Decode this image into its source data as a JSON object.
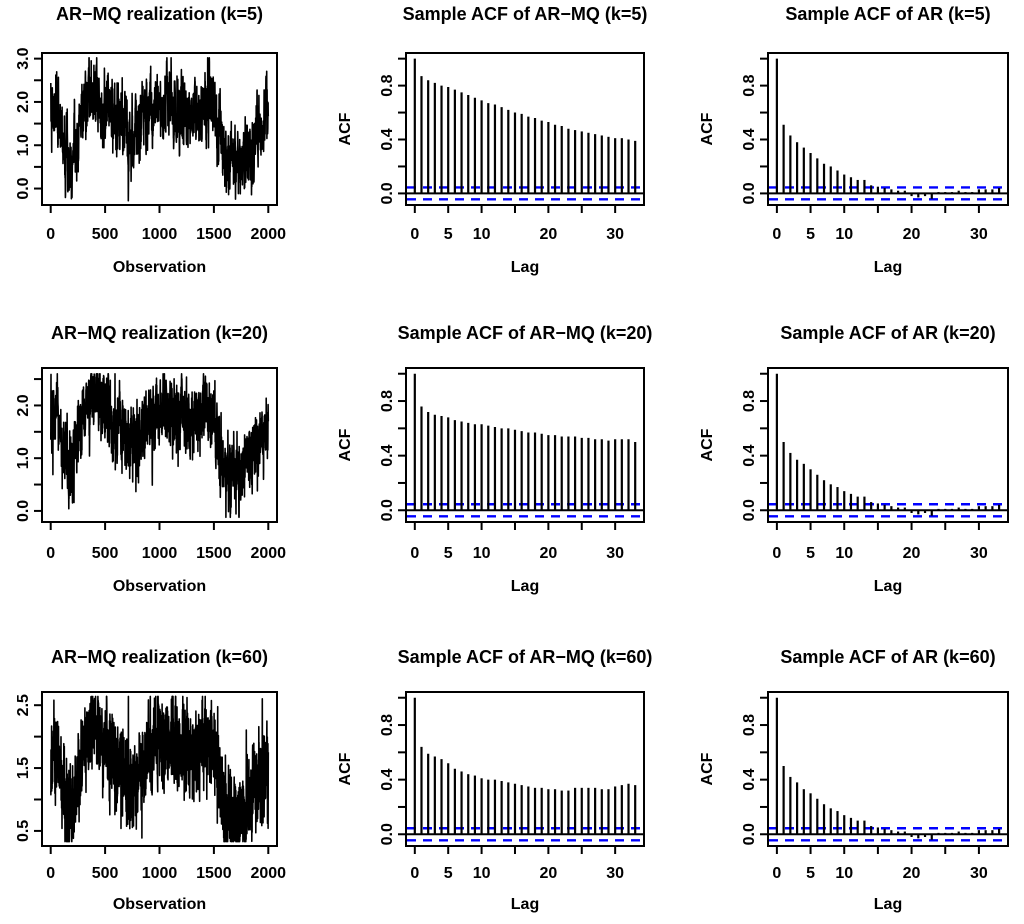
{
  "figure_title": "",
  "colors": {
    "series": "#000000",
    "acf_bars": "#000000",
    "confidence_band": "#0000ff",
    "background": "#ffffff",
    "text": "#000000"
  },
  "shared": {
    "realization_trend_anchors": [
      [
        0,
        1.55
      ],
      [
        60,
        1.8
      ],
      [
        120,
        1.05
      ],
      [
        180,
        0.7
      ],
      [
        230,
        1.15
      ],
      [
        300,
        1.9
      ],
      [
        380,
        2.1
      ],
      [
        430,
        2.15
      ],
      [
        480,
        1.75
      ],
      [
        530,
        1.95
      ],
      [
        580,
        1.65
      ],
      [
        640,
        1.55
      ],
      [
        700,
        1.35
      ],
      [
        760,
        1.15
      ],
      [
        820,
        1.45
      ],
      [
        880,
        1.6
      ],
      [
        940,
        1.75
      ],
      [
        1000,
        2.05
      ],
      [
        1060,
        2.05
      ],
      [
        1120,
        1.85
      ],
      [
        1180,
        1.75
      ],
      [
        1240,
        1.8
      ],
      [
        1300,
        1.7
      ],
      [
        1360,
        1.75
      ],
      [
        1420,
        2.0
      ],
      [
        1480,
        1.85
      ],
      [
        1540,
        1.35
      ],
      [
        1600,
        0.85
      ],
      [
        1660,
        0.75
      ],
      [
        1720,
        0.7
      ],
      [
        1780,
        0.85
      ],
      [
        1840,
        1.05
      ],
      [
        1880,
        1.25
      ],
      [
        1920,
        1.35
      ],
      [
        1960,
        1.5
      ],
      [
        2000,
        1.75
      ]
    ]
  },
  "chart_data": [
    {
      "type": "line",
      "subtype": "time-series-realization",
      "title": "AR−MQ realization (k=5)",
      "xlabel": "Observation",
      "ylabel": "",
      "n": 2000,
      "xlim": [
        -80,
        2080
      ],
      "ylim": [
        -0.38,
        3.13
      ],
      "x_ticks": [
        0,
        500,
        1000,
        1500,
        2000
      ],
      "x_tick_labels": [
        "0",
        "500",
        "1000",
        "1500",
        "2000"
      ],
      "y_ticks": [
        0,
        0.5,
        1,
        1.5,
        2,
        2.5,
        3
      ],
      "y_tick_labels": [
        "0.0",
        "",
        "1.0",
        "",
        "2.0",
        "",
        "3.0"
      ],
      "noise": {
        "seed": 7,
        "ar": 0.6,
        "sd": 0.32
      },
      "clip": [
        -0.28,
        3.02
      ],
      "grid": false
    },
    {
      "type": "bar",
      "subtype": "acf",
      "title": "Sample ACF of AR−MQ (k=5)",
      "xlabel": "Lag",
      "ylabel": "ACF",
      "xlim": [
        -1.32,
        34.32
      ],
      "ylim": [
        -0.086,
        1.042
      ],
      "x_ticks": [
        0,
        5,
        10,
        15,
        20,
        25,
        30
      ],
      "x_tick_labels": [
        "0",
        "5",
        "10",
        "",
        "20",
        "",
        "30"
      ],
      "y_ticks": [
        0,
        0.2,
        0.4,
        0.6,
        0.8,
        1.0
      ],
      "y_tick_labels": [
        "0.0",
        "",
        "0.4",
        "",
        "0.8",
        ""
      ],
      "conf_bands": [
        0.044,
        -0.044
      ],
      "lags": [
        0,
        1,
        2,
        3,
        4,
        5,
        6,
        7,
        8,
        9,
        10,
        11,
        12,
        13,
        14,
        15,
        16,
        17,
        18,
        19,
        20,
        21,
        22,
        23,
        24,
        25,
        26,
        27,
        28,
        29,
        30,
        31,
        32,
        33
      ],
      "values": [
        1.0,
        0.87,
        0.84,
        0.82,
        0.8,
        0.79,
        0.77,
        0.75,
        0.73,
        0.71,
        0.69,
        0.67,
        0.66,
        0.64,
        0.62,
        0.6,
        0.59,
        0.57,
        0.56,
        0.54,
        0.53,
        0.51,
        0.5,
        0.48,
        0.47,
        0.46,
        0.45,
        0.44,
        0.43,
        0.42,
        0.41,
        0.41,
        0.4,
        0.39
      ],
      "grid": false
    },
    {
      "type": "bar",
      "subtype": "acf",
      "title": "Sample ACF of AR (k=5)",
      "xlabel": "Lag",
      "ylabel": "ACF",
      "xlim": [
        -1.32,
        34.32
      ],
      "ylim": [
        -0.086,
        1.042
      ],
      "x_ticks": [
        0,
        5,
        10,
        15,
        20,
        25,
        30
      ],
      "x_tick_labels": [
        "0",
        "5",
        "10",
        "",
        "20",
        "",
        "30"
      ],
      "y_ticks": [
        0,
        0.2,
        0.4,
        0.6,
        0.8,
        1.0
      ],
      "y_tick_labels": [
        "0.0",
        "",
        "0.4",
        "",
        "0.8",
        ""
      ],
      "conf_bands": [
        0.044,
        -0.044
      ],
      "lags": [
        0,
        1,
        2,
        3,
        4,
        5,
        6,
        7,
        8,
        9,
        10,
        11,
        12,
        13,
        14,
        15,
        16,
        17,
        18,
        19,
        20,
        21,
        22,
        23,
        24,
        25,
        26,
        27,
        28,
        29,
        30,
        31,
        32,
        33
      ],
      "values": [
        1.0,
        0.51,
        0.43,
        0.38,
        0.34,
        0.3,
        0.26,
        0.22,
        0.2,
        0.17,
        0.14,
        0.12,
        0.1,
        0.1,
        0.06,
        0.05,
        0.04,
        0.03,
        0.02,
        0.02,
        -0.02,
        -0.03,
        -0.02,
        -0.04,
        0.01,
        0.01,
        0.01,
        0.02,
        0.01,
        0.01,
        0.03,
        0.03,
        0.03,
        0.04
      ],
      "grid": false
    },
    {
      "type": "line",
      "subtype": "time-series-realization",
      "title": "AR−MQ realization (k=20)",
      "xlabel": "Observation",
      "ylabel": "",
      "n": 2000,
      "xlim": [
        -80,
        2080
      ],
      "ylim": [
        -0.21,
        2.71
      ],
      "x_ticks": [
        0,
        500,
        1000,
        1500,
        2000
      ],
      "x_tick_labels": [
        "0",
        "500",
        "1000",
        "1500",
        "2000"
      ],
      "y_ticks": [
        0,
        0.5,
        1,
        1.5,
        2,
        2.5
      ],
      "y_tick_labels": [
        "0.0",
        "",
        "1.0",
        "",
        "2.0",
        ""
      ],
      "noise": {
        "seed": 13,
        "ar": 0.45,
        "sd": 0.3
      },
      "clip": [
        -0.12,
        2.6
      ],
      "grid": false
    },
    {
      "type": "bar",
      "subtype": "acf",
      "title": "Sample ACF of AR−MQ (k=20)",
      "xlabel": "Lag",
      "ylabel": "ACF",
      "xlim": [
        -1.32,
        34.32
      ],
      "ylim": [
        -0.086,
        1.042
      ],
      "x_ticks": [
        0,
        5,
        10,
        15,
        20,
        25,
        30
      ],
      "x_tick_labels": [
        "0",
        "5",
        "10",
        "",
        "20",
        "",
        "30"
      ],
      "y_ticks": [
        0,
        0.2,
        0.4,
        0.6,
        0.8,
        1.0
      ],
      "y_tick_labels": [
        "0.0",
        "",
        "0.4",
        "",
        "0.8",
        ""
      ],
      "conf_bands": [
        0.044,
        -0.044
      ],
      "lags": [
        0,
        1,
        2,
        3,
        4,
        5,
        6,
        7,
        8,
        9,
        10,
        11,
        12,
        13,
        14,
        15,
        16,
        17,
        18,
        19,
        20,
        21,
        22,
        23,
        24,
        25,
        26,
        27,
        28,
        29,
        30,
        31,
        32,
        33
      ],
      "values": [
        1.0,
        0.76,
        0.72,
        0.7,
        0.69,
        0.68,
        0.66,
        0.65,
        0.64,
        0.63,
        0.63,
        0.62,
        0.61,
        0.6,
        0.6,
        0.59,
        0.58,
        0.57,
        0.57,
        0.56,
        0.55,
        0.55,
        0.54,
        0.54,
        0.54,
        0.53,
        0.53,
        0.52,
        0.52,
        0.51,
        0.52,
        0.52,
        0.52,
        0.5
      ],
      "grid": false
    },
    {
      "type": "bar",
      "subtype": "acf",
      "title": "Sample ACF of AR (k=20)",
      "xlabel": "Lag",
      "ylabel": "ACF",
      "xlim": [
        -1.32,
        34.32
      ],
      "ylim": [
        -0.086,
        1.042
      ],
      "x_ticks": [
        0,
        5,
        10,
        15,
        20,
        25,
        30
      ],
      "x_tick_labels": [
        "0",
        "5",
        "10",
        "",
        "20",
        "",
        "30"
      ],
      "y_ticks": [
        0,
        0.2,
        0.4,
        0.6,
        0.8,
        1.0
      ],
      "y_tick_labels": [
        "0.0",
        "",
        "0.4",
        "",
        "0.8",
        ""
      ],
      "conf_bands": [
        0.044,
        -0.044
      ],
      "lags": [
        0,
        1,
        2,
        3,
        4,
        5,
        6,
        7,
        8,
        9,
        10,
        11,
        12,
        13,
        14,
        15,
        16,
        17,
        18,
        19,
        20,
        21,
        22,
        23,
        24,
        25,
        26,
        27,
        28,
        29,
        30,
        31,
        32,
        33
      ],
      "values": [
        1.0,
        0.5,
        0.42,
        0.37,
        0.34,
        0.3,
        0.26,
        0.22,
        0.19,
        0.17,
        0.14,
        0.12,
        0.1,
        0.1,
        0.06,
        0.05,
        0.04,
        0.03,
        0.02,
        0.02,
        -0.02,
        -0.03,
        -0.02,
        -0.04,
        0.01,
        0.01,
        0.01,
        0.02,
        0.01,
        0.01,
        0.03,
        0.03,
        0.03,
        0.04
      ],
      "grid": false
    },
    {
      "type": "line",
      "subtype": "time-series-realization",
      "title": "AR−MQ realization (k=60)",
      "xlabel": "Observation",
      "ylabel": "",
      "n": 2000,
      "xlim": [
        -80,
        2080
      ],
      "ylim": [
        0.26,
        2.71
      ],
      "x_ticks": [
        0,
        500,
        1000,
        1500,
        2000
      ],
      "x_tick_labels": [
        "0",
        "500",
        "1000",
        "1500",
        "2000"
      ],
      "y_ticks": [
        0.5,
        1,
        1.5,
        2,
        2.5
      ],
      "y_tick_labels": [
        "0.5",
        "",
        "1.5",
        "",
        "2.5"
      ],
      "noise": {
        "seed": 21,
        "ar": 0.2,
        "sd": 0.34
      },
      "clip": [
        0.33,
        2.64
      ],
      "grid": false
    },
    {
      "type": "bar",
      "subtype": "acf",
      "title": "Sample ACF of AR−MQ (k=60)",
      "xlabel": "Lag",
      "ylabel": "ACF",
      "xlim": [
        -1.32,
        34.32
      ],
      "ylim": [
        -0.086,
        1.042
      ],
      "x_ticks": [
        0,
        5,
        10,
        15,
        20,
        25,
        30
      ],
      "x_tick_labels": [
        "0",
        "5",
        "10",
        "",
        "20",
        "",
        "30"
      ],
      "y_ticks": [
        0,
        0.2,
        0.4,
        0.6,
        0.8,
        1.0
      ],
      "y_tick_labels": [
        "0.0",
        "",
        "0.4",
        "",
        "0.8",
        ""
      ],
      "conf_bands": [
        0.044,
        -0.044
      ],
      "lags": [
        0,
        1,
        2,
        3,
        4,
        5,
        6,
        7,
        8,
        9,
        10,
        11,
        12,
        13,
        14,
        15,
        16,
        17,
        18,
        19,
        20,
        21,
        22,
        23,
        24,
        25,
        26,
        27,
        28,
        29,
        30,
        31,
        32,
        33
      ],
      "values": [
        1.0,
        0.64,
        0.59,
        0.57,
        0.55,
        0.52,
        0.48,
        0.46,
        0.44,
        0.43,
        0.41,
        0.4,
        0.4,
        0.39,
        0.38,
        0.37,
        0.36,
        0.35,
        0.34,
        0.34,
        0.33,
        0.33,
        0.32,
        0.32,
        0.34,
        0.34,
        0.34,
        0.34,
        0.33,
        0.33,
        0.35,
        0.36,
        0.37,
        0.36
      ],
      "grid": false
    },
    {
      "type": "bar",
      "subtype": "acf",
      "title": "Sample ACF of AR (k=60)",
      "xlabel": "Lag",
      "ylabel": "ACF",
      "xlim": [
        -1.32,
        34.32
      ],
      "ylim": [
        -0.086,
        1.042
      ],
      "x_ticks": [
        0,
        5,
        10,
        15,
        20,
        25,
        30
      ],
      "x_tick_labels": [
        "0",
        "5",
        "10",
        "",
        "20",
        "",
        "30"
      ],
      "y_ticks": [
        0,
        0.2,
        0.4,
        0.6,
        0.8,
        1.0
      ],
      "y_tick_labels": [
        "0.0",
        "",
        "0.4",
        "",
        "0.8",
        ""
      ],
      "conf_bands": [
        0.044,
        -0.044
      ],
      "lags": [
        0,
        1,
        2,
        3,
        4,
        5,
        6,
        7,
        8,
        9,
        10,
        11,
        12,
        13,
        14,
        15,
        16,
        17,
        18,
        19,
        20,
        21,
        22,
        23,
        24,
        25,
        26,
        27,
        28,
        29,
        30,
        31,
        32,
        33
      ],
      "values": [
        1.0,
        0.5,
        0.42,
        0.38,
        0.33,
        0.3,
        0.26,
        0.22,
        0.19,
        0.17,
        0.14,
        0.12,
        0.1,
        0.1,
        0.06,
        0.05,
        0.04,
        0.03,
        0.02,
        0.02,
        -0.02,
        -0.03,
        -0.02,
        -0.04,
        0.01,
        0.01,
        0.01,
        0.02,
        0.01,
        0.01,
        0.03,
        0.03,
        0.03,
        0.04
      ],
      "grid": false
    }
  ]
}
